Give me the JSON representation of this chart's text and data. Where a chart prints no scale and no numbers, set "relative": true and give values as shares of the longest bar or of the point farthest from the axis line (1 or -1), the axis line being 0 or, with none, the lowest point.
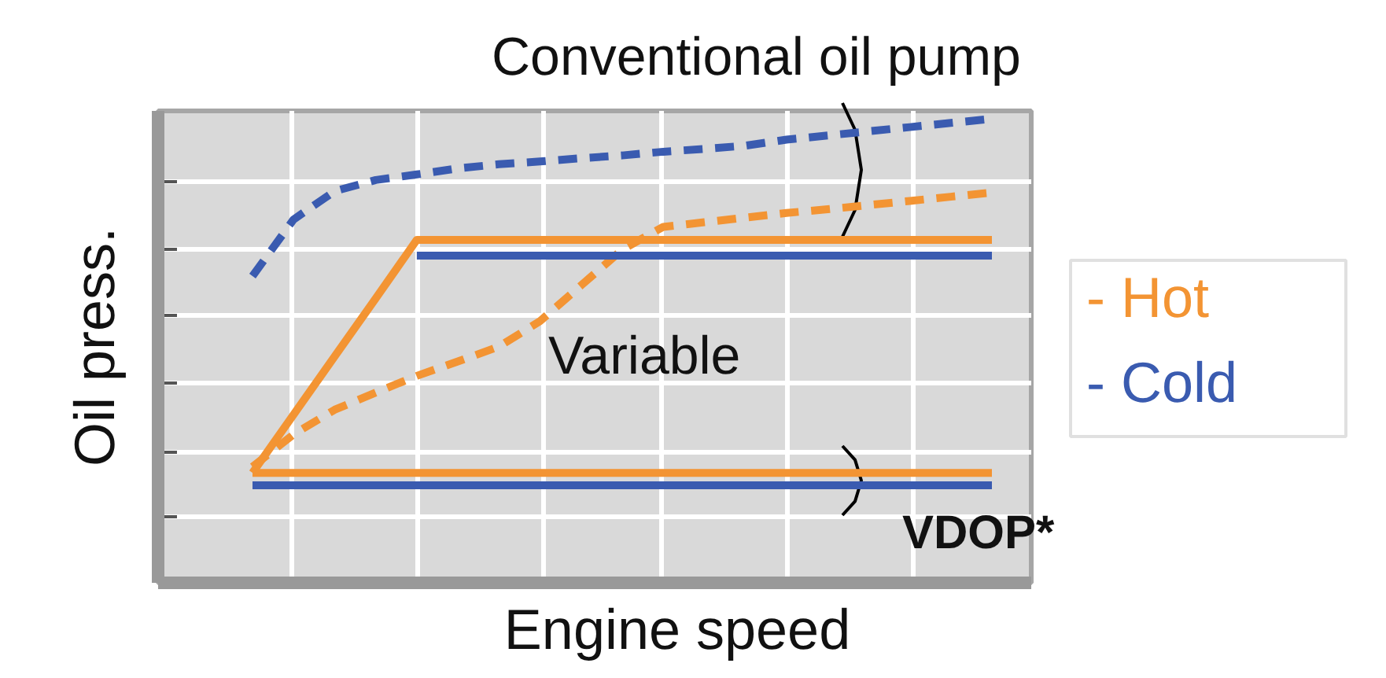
{
  "chart_data": {
    "type": "line",
    "relative": true,
    "xlabel": "Engine speed",
    "ylabel": "Oil press.",
    "tick_labels": false,
    "grid": true,
    "annotations": [
      "Conventional oil pump",
      "Variable",
      "VDOP*"
    ],
    "categories": [
      null,
      null,
      null,
      null,
      null,
      null,
      null,
      null,
      null,
      null,
      null,
      null,
      null,
      null,
      null,
      null,
      null,
      null,
      null
    ],
    "series": [
      {
        "name": "- Hot",
        "color": "#f39433",
        "line_style": "dashed",
        "values": [
          0.25,
          0.32,
          0.373,
          0.41,
          0.446,
          0.477,
          0.509,
          0.564,
          0.641,
          0.718,
          0.767,
          0.777,
          0.787,
          0.797,
          0.805,
          0.814,
          0.823,
          0.832,
          0.841
        ]
      },
      {
        "name": "- Cold",
        "color": "#3a5bb0",
        "line_style": "dashed",
        "values": [
          0.661,
          0.783,
          0.844,
          0.868,
          0.88,
          0.893,
          0.902,
          0.908,
          0.915,
          0.921,
          0.929,
          0.935,
          0.942,
          0.955,
          0.964,
          0.973,
          0.982,
          0.991,
          1.0
        ]
      },
      {
        "color": "#3a5bb0",
        "line_style": "solid",
        "values": [
          null,
          null,
          null,
          null,
          0.705,
          0.705,
          0.705,
          0.705,
          0.705,
          0.705,
          0.705,
          0.705,
          0.705,
          0.705,
          0.705,
          0.705,
          0.705,
          0.705,
          0.705
        ]
      },
      {
        "color": "#3a5bb0",
        "line_style": "solid",
        "values": [
          0.21,
          0.21,
          0.21,
          0.21,
          0.21,
          0.21,
          0.21,
          0.21,
          0.21,
          0.21,
          0.21,
          0.21,
          0.21,
          0.21,
          0.21,
          0.21,
          0.21,
          0.21,
          0.21
        ]
      },
      {
        "color": "#f39433",
        "line_style": "solid",
        "values": [
          0.237,
          0.3625,
          0.488,
          0.613,
          0.739,
          0.739,
          0.739,
          0.739,
          0.739,
          0.739,
          0.739,
          0.739,
          0.739,
          0.739,
          0.739,
          0.739,
          0.739,
          0.739,
          0.739
        ]
      },
      {
        "color": "#f39433",
        "line_style": "solid",
        "values": [
          0.237,
          0.237,
          0.237,
          0.237,
          0.237,
          0.237,
          0.237,
          0.237,
          0.237,
          0.237,
          0.237,
          0.237,
          0.237,
          0.237,
          0.237,
          0.237,
          0.237,
          0.237,
          0.237
        ]
      }
    ]
  }
}
